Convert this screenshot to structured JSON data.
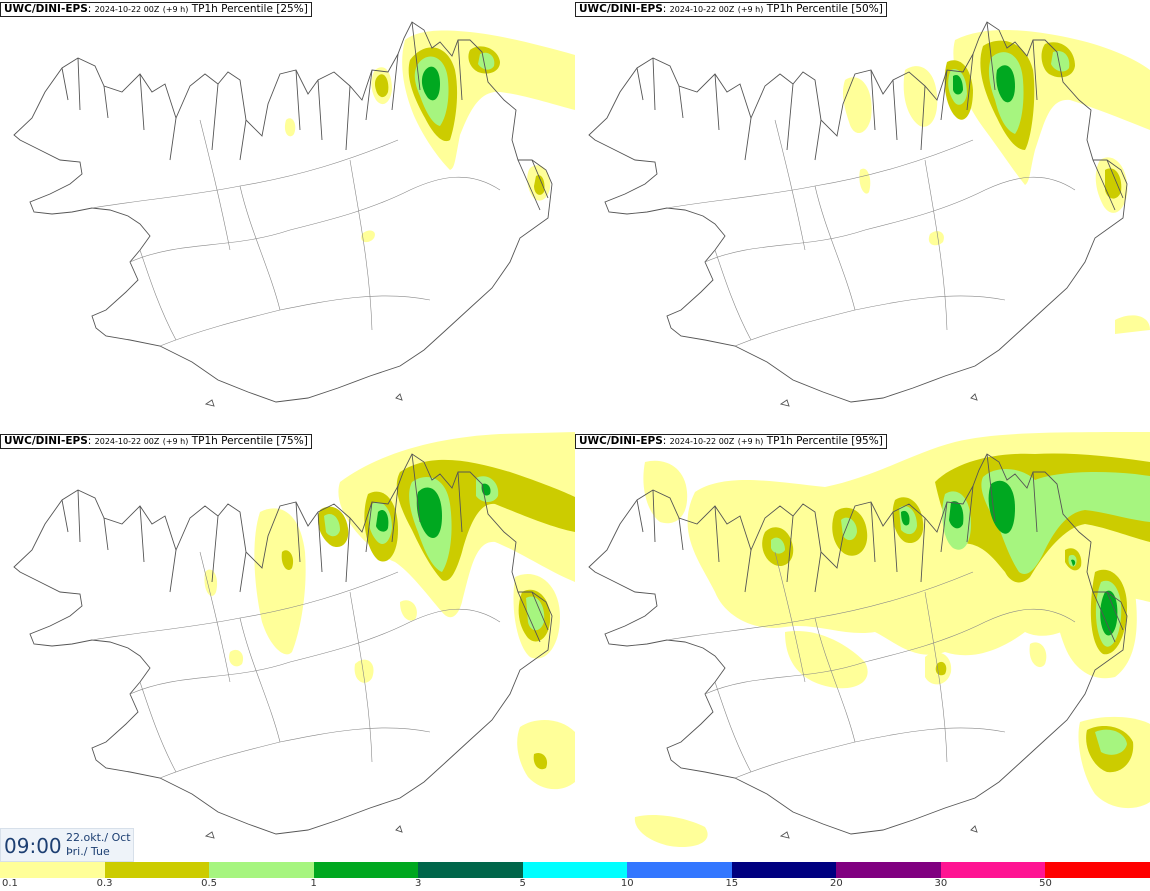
{
  "panels": [
    {
      "model": "UWC/DINI-EPS",
      "run": "2024-10-22 00Z",
      "step": "(+9 h)",
      "field": "TP1h Percentile [25%]"
    },
    {
      "model": "UWC/DINI-EPS",
      "run": "2024-10-22 00Z",
      "step": "(+9 h)",
      "field": "TP1h Percentile [50%]"
    },
    {
      "model": "UWC/DINI-EPS",
      "run": "2024-10-22 00Z",
      "step": "(+9 h)",
      "field": "TP1h Percentile [75%]"
    },
    {
      "model": "UWC/DINI-EPS",
      "run": "2024-10-22 00Z",
      "step": "(+9 h)",
      "field": "TP1h Percentile [95%]"
    }
  ],
  "valid_time": {
    "time": "09:00",
    "date": "22.okt./ Oct",
    "weekday": "Þri./ Tue"
  },
  "legend": {
    "ticks": [
      "0.1",
      "0.3",
      "0.5",
      "1",
      "3",
      "5",
      "10",
      "15",
      "20",
      "30",
      "50"
    ],
    "colors": [
      "#ffff99",
      "#cccc00",
      "#a6f57f",
      "#00a820",
      "#00664a",
      "#00ffff",
      "#3377ff",
      "#000080",
      "#800080",
      "#ff1493",
      "#ff0000"
    ]
  },
  "precip_colors": {
    "light": "#ffff99",
    "moderate": "#cccc00",
    "heavier": "#a6f57f",
    "heavy": "#00a820"
  }
}
